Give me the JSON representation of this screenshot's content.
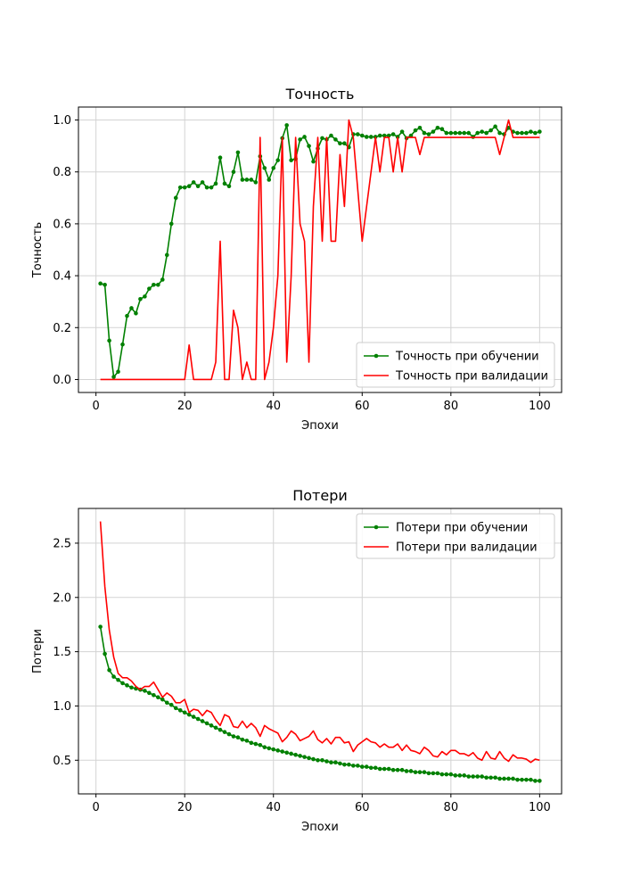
{
  "chart_data": [
    {
      "type": "line",
      "title": "Точность",
      "xlabel": "Эпохи",
      "ylabel": "Точность",
      "xlim": [
        -3.95,
        104.95
      ],
      "ylim": [
        -0.05,
        1.05
      ],
      "xticks": [
        0,
        20,
        40,
        60,
        80,
        100
      ],
      "yticks": [
        0.0,
        0.2,
        0.4,
        0.6,
        0.8,
        1.0
      ],
      "xtick_labels": [
        "0",
        "20",
        "40",
        "60",
        "80",
        "100"
      ],
      "ytick_labels": [
        "0.0",
        "0.2",
        "0.4",
        "0.6",
        "0.8",
        "1.0"
      ],
      "grid": true,
      "legend_position": "lower-right",
      "series": [
        {
          "name": "Точность при обучении",
          "color": "#008000",
          "marker": "circle",
          "x": [
            1,
            2,
            3,
            4,
            5,
            6,
            7,
            8,
            9,
            10,
            11,
            12,
            13,
            14,
            15,
            16,
            17,
            18,
            19,
            20,
            21,
            22,
            23,
            24,
            25,
            26,
            27,
            28,
            29,
            30,
            31,
            32,
            33,
            34,
            35,
            36,
            37,
            38,
            39,
            40,
            41,
            42,
            43,
            44,
            45,
            46,
            47,
            48,
            49,
            50,
            51,
            52,
            53,
            54,
            55,
            56,
            57,
            58,
            59,
            60,
            61,
            62,
            63,
            64,
            65,
            66,
            67,
            68,
            69,
            70,
            71,
            72,
            73,
            74,
            75,
            76,
            77,
            78,
            79,
            80,
            81,
            82,
            83,
            84,
            85,
            86,
            87,
            88,
            89,
            90,
            91,
            92,
            93,
            94,
            95,
            96,
            97,
            98,
            99,
            100
          ],
          "values": [
            0.37,
            0.365,
            0.15,
            0.01,
            0.03,
            0.135,
            0.245,
            0.275,
            0.255,
            0.31,
            0.32,
            0.35,
            0.365,
            0.365,
            0.385,
            0.48,
            0.6,
            0.7,
            0.74,
            0.74,
            0.745,
            0.76,
            0.745,
            0.76,
            0.74,
            0.74,
            0.755,
            0.855,
            0.755,
            0.745,
            0.8,
            0.875,
            0.77,
            0.77,
            0.77,
            0.76,
            0.86,
            0.815,
            0.77,
            0.815,
            0.845,
            0.93,
            0.98,
            0.845,
            0.85,
            0.925,
            0.935,
            0.9,
            0.84,
            0.89,
            0.93,
            0.925,
            0.94,
            0.925,
            0.91,
            0.91,
            0.895,
            0.945,
            0.945,
            0.94,
            0.935,
            0.935,
            0.935,
            0.94,
            0.94,
            0.94,
            0.945,
            0.935,
            0.955,
            0.93,
            0.94,
            0.96,
            0.97,
            0.95,
            0.945,
            0.955,
            0.97,
            0.965,
            0.95,
            0.95,
            0.95,
            0.95,
            0.95,
            0.95,
            0.935,
            0.95,
            0.955,
            0.95,
            0.96,
            0.975,
            0.95,
            0.945,
            0.97,
            0.955,
            0.95,
            0.95,
            0.95,
            0.955,
            0.95,
            0.955
          ]
        },
        {
          "name": "Точность при валидации",
          "color": "#ff0000",
          "marker": "none",
          "x": [
            1,
            2,
            3,
            4,
            5,
            6,
            7,
            8,
            9,
            10,
            11,
            12,
            13,
            14,
            15,
            16,
            17,
            18,
            19,
            20,
            21,
            22,
            23,
            24,
            25,
            26,
            27,
            28,
            29,
            30,
            31,
            32,
            33,
            34,
            35,
            36,
            37,
            38,
            39,
            40,
            41,
            42,
            43,
            44,
            45,
            46,
            47,
            48,
            49,
            50,
            51,
            52,
            53,
            54,
            55,
            56,
            57,
            58,
            59,
            60,
            61,
            62,
            63,
            64,
            65,
            66,
            67,
            68,
            69,
            70,
            71,
            72,
            73,
            74,
            75,
            76,
            77,
            78,
            79,
            80,
            81,
            82,
            83,
            84,
            85,
            86,
            87,
            88,
            89,
            90,
            91,
            92,
            93,
            94,
            95,
            96,
            97,
            98,
            99,
            100
          ],
          "values": [
            0,
            0,
            0,
            0,
            0,
            0,
            0,
            0,
            0,
            0,
            0,
            0,
            0,
            0,
            0,
            0,
            0,
            0,
            0,
            0,
            0.133,
            0,
            0,
            0,
            0,
            0,
            0.067,
            0.533,
            0,
            0,
            0.267,
            0.2,
            0,
            0.067,
            0,
            0,
            0.933,
            0,
            0.067,
            0.2,
            0.4,
            0.933,
            0.067,
            0.4,
            0.933,
            0.6,
            0.533,
            0.067,
            0.667,
            0.933,
            0.533,
            0.933,
            0.533,
            0.533,
            0.867,
            0.667,
            1.0,
            0.933,
            0.733,
            0.533,
            0.667,
            0.8,
            0.933,
            0.8,
            0.933,
            0.933,
            0.8,
            0.933,
            0.8,
            0.933,
            0.933,
            0.933,
            0.867,
            0.933,
            0.933,
            0.933,
            0.933,
            0.933,
            0.933,
            0.933,
            0.933,
            0.933,
            0.933,
            0.933,
            0.933,
            0.933,
            0.933,
            0.933,
            0.933,
            0.933,
            0.867,
            0.933,
            1.0,
            0.933,
            0.933,
            0.933,
            0.933,
            0.933,
            0.933,
            0.933
          ]
        }
      ]
    },
    {
      "type": "line",
      "title": "Потери",
      "xlabel": "Эпохи",
      "ylabel": "Потери",
      "xlim": [
        -3.95,
        104.95
      ],
      "ylim": [
        0.19,
        2.82
      ],
      "xticks": [
        0,
        20,
        40,
        60,
        80,
        100
      ],
      "yticks": [
        0.5,
        1.0,
        1.5,
        2.0,
        2.5
      ],
      "xtick_labels": [
        "0",
        "20",
        "40",
        "60",
        "80",
        "100"
      ],
      "ytick_labels": [
        "0.5",
        "1.0",
        "1.5",
        "2.0",
        "2.5"
      ],
      "grid": true,
      "legend_position": "upper-right",
      "series": [
        {
          "name": "Потери при обучении",
          "color": "#008000",
          "marker": "circle",
          "x": [
            1,
            2,
            3,
            4,
            5,
            6,
            7,
            8,
            9,
            10,
            11,
            12,
            13,
            14,
            15,
            16,
            17,
            18,
            19,
            20,
            21,
            22,
            23,
            24,
            25,
            26,
            27,
            28,
            29,
            30,
            31,
            32,
            33,
            34,
            35,
            36,
            37,
            38,
            39,
            40,
            41,
            42,
            43,
            44,
            45,
            46,
            47,
            48,
            49,
            50,
            51,
            52,
            53,
            54,
            55,
            56,
            57,
            58,
            59,
            60,
            61,
            62,
            63,
            64,
            65,
            66,
            67,
            68,
            69,
            70,
            71,
            72,
            73,
            74,
            75,
            76,
            77,
            78,
            79,
            80,
            81,
            82,
            83,
            84,
            85,
            86,
            87,
            88,
            89,
            90,
            91,
            92,
            93,
            94,
            95,
            96,
            97,
            98,
            99,
            100
          ],
          "values": [
            1.73,
            1.48,
            1.33,
            1.27,
            1.24,
            1.21,
            1.19,
            1.17,
            1.16,
            1.15,
            1.14,
            1.12,
            1.1,
            1.08,
            1.06,
            1.03,
            1.01,
            0.98,
            0.96,
            0.94,
            0.92,
            0.9,
            0.88,
            0.86,
            0.84,
            0.82,
            0.8,
            0.78,
            0.76,
            0.74,
            0.72,
            0.71,
            0.69,
            0.68,
            0.66,
            0.65,
            0.64,
            0.62,
            0.61,
            0.6,
            0.59,
            0.58,
            0.57,
            0.56,
            0.55,
            0.54,
            0.53,
            0.52,
            0.51,
            0.5,
            0.5,
            0.49,
            0.48,
            0.48,
            0.47,
            0.46,
            0.46,
            0.45,
            0.45,
            0.44,
            0.44,
            0.43,
            0.43,
            0.42,
            0.42,
            0.42,
            0.41,
            0.41,
            0.41,
            0.4,
            0.4,
            0.39,
            0.39,
            0.39,
            0.38,
            0.38,
            0.38,
            0.37,
            0.37,
            0.37,
            0.36,
            0.36,
            0.36,
            0.35,
            0.35,
            0.35,
            0.35,
            0.34,
            0.34,
            0.34,
            0.33,
            0.33,
            0.33,
            0.33,
            0.32,
            0.32,
            0.32,
            0.32,
            0.31,
            0.31
          ]
        },
        {
          "name": "Потери при валидации",
          "color": "#ff0000",
          "marker": "none",
          "x": [
            1,
            2,
            3,
            4,
            5,
            6,
            7,
            8,
            9,
            10,
            11,
            12,
            13,
            14,
            15,
            16,
            17,
            18,
            19,
            20,
            21,
            22,
            23,
            24,
            25,
            26,
            27,
            28,
            29,
            30,
            31,
            32,
            33,
            34,
            35,
            36,
            37,
            38,
            39,
            40,
            41,
            42,
            43,
            44,
            45,
            46,
            47,
            48,
            49,
            50,
            51,
            52,
            53,
            54,
            55,
            56,
            57,
            58,
            59,
            60,
            61,
            62,
            63,
            64,
            65,
            66,
            67,
            68,
            69,
            70,
            71,
            72,
            73,
            74,
            75,
            76,
            77,
            78,
            79,
            80,
            81,
            82,
            83,
            84,
            85,
            86,
            87,
            88,
            89,
            90,
            91,
            92,
            93,
            94,
            95,
            96,
            97,
            98,
            99,
            100
          ],
          "values": [
            2.7,
            2.1,
            1.7,
            1.45,
            1.3,
            1.26,
            1.26,
            1.23,
            1.18,
            1.15,
            1.18,
            1.18,
            1.22,
            1.15,
            1.08,
            1.12,
            1.09,
            1.03,
            1.03,
            1.06,
            0.94,
            0.97,
            0.96,
            0.91,
            0.96,
            0.94,
            0.87,
            0.82,
            0.92,
            0.9,
            0.81,
            0.8,
            0.86,
            0.8,
            0.84,
            0.8,
            0.72,
            0.82,
            0.79,
            0.77,
            0.75,
            0.67,
            0.71,
            0.77,
            0.74,
            0.68,
            0.7,
            0.72,
            0.77,
            0.69,
            0.66,
            0.7,
            0.65,
            0.71,
            0.71,
            0.66,
            0.67,
            0.58,
            0.64,
            0.67,
            0.7,
            0.67,
            0.66,
            0.62,
            0.65,
            0.62,
            0.62,
            0.65,
            0.59,
            0.64,
            0.59,
            0.58,
            0.56,
            0.62,
            0.59,
            0.54,
            0.53,
            0.58,
            0.55,
            0.59,
            0.59,
            0.56,
            0.56,
            0.54,
            0.57,
            0.52,
            0.5,
            0.58,
            0.52,
            0.51,
            0.58,
            0.52,
            0.49,
            0.55,
            0.52,
            0.52,
            0.51,
            0.48,
            0.51,
            0.5
          ]
        }
      ]
    }
  ]
}
